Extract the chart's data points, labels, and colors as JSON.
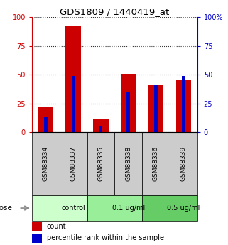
{
  "title": "GDS1809 / 1440419_at",
  "samples": [
    "GSM88334",
    "GSM88337",
    "GSM88335",
    "GSM88338",
    "GSM88336",
    "GSM88339"
  ],
  "count_values": [
    22,
    92,
    12,
    51,
    41,
    46
  ],
  "percentile_values": [
    13,
    49,
    5,
    35,
    41,
    49
  ],
  "groups": [
    {
      "label": "control",
      "color": "#ccffcc",
      "span": [
        0,
        2
      ]
    },
    {
      "label": "0.1 ug/ml",
      "color": "#99ee99",
      "span": [
        2,
        4
      ]
    },
    {
      "label": "0.5 ug/ml",
      "color": "#66cc66",
      "span": [
        4,
        6
      ]
    }
  ],
  "ylim_left": [
    0,
    100
  ],
  "ylim_right": [
    0,
    100
  ],
  "left_ticks": [
    0,
    25,
    50,
    75,
    100
  ],
  "right_ticks": [
    0,
    25,
    50,
    75,
    100
  ],
  "left_tick_color": "#cc0000",
  "right_tick_color": "#0000cc",
  "bar_color_count": "#cc0000",
  "bar_color_percentile": "#0000cc",
  "grid_style": "dotted",
  "grid_color": "#000000",
  "grid_alpha": 0.8,
  "dose_label": "dose",
  "legend_count": "count",
  "legend_percentile": "percentile rank within the sample",
  "sample_bg_color": "#cccccc",
  "count_bar_width": 0.55,
  "pct_bar_width": 0.12
}
